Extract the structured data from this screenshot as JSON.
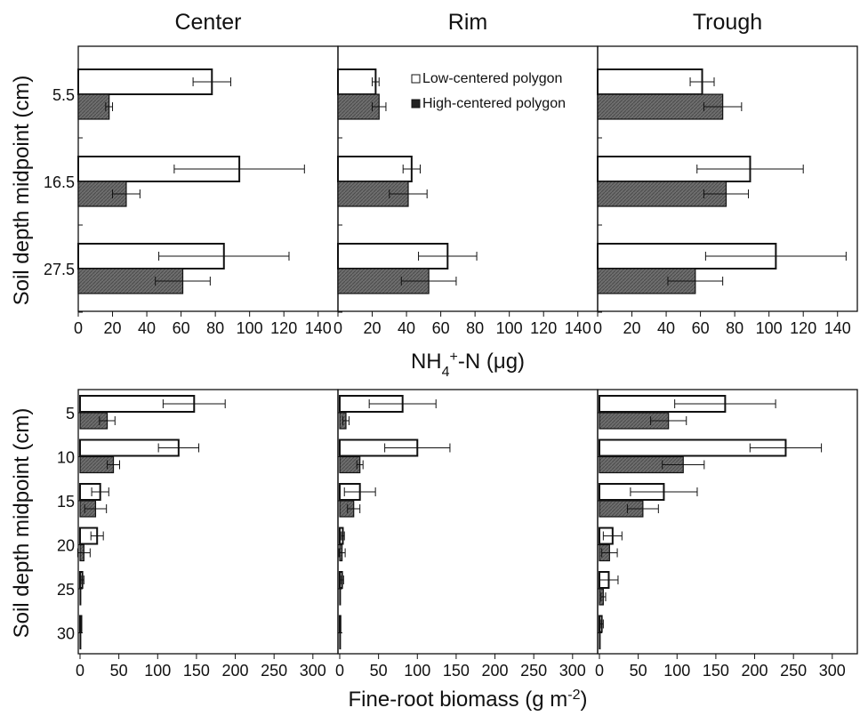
{
  "chart_data": [
    {
      "type": "bar",
      "orientation": "horizontal",
      "panel_title": "Center",
      "row": "top",
      "categories": [
        "5.5",
        "16.5",
        "27.5"
      ],
      "series": [
        {
          "values": [
            78,
            94,
            85
          ],
          "errors": [
            11,
            38,
            38
          ]
        },
        {
          "values": [
            18,
            28,
            61
          ],
          "errors": [
            2,
            8,
            16
          ]
        }
      ],
      "xlim": [
        0,
        150
      ],
      "xticks": [
        "0",
        "20",
        "40",
        "60",
        "80",
        "100",
        "120",
        "140"
      ]
    },
    {
      "type": "bar",
      "orientation": "horizontal",
      "panel_title": "Rim",
      "row": "top",
      "categories": [
        "5.5",
        "16.5",
        "27.5"
      ],
      "series": [
        {
          "values": [
            22,
            43,
            64
          ],
          "errors": [
            2,
            5,
            17
          ]
        },
        {
          "values": [
            24,
            41,
            53
          ],
          "errors": [
            4,
            11,
            16
          ]
        }
      ],
      "xlim": [
        0,
        150
      ],
      "xticks": [
        "0",
        "20",
        "40",
        "60",
        "80",
        "100",
        "120",
        "140"
      ]
    },
    {
      "type": "bar",
      "orientation": "horizontal",
      "panel_title": "Trough",
      "row": "top",
      "categories": [
        "5.5",
        "16.5",
        "27.5"
      ],
      "series": [
        {
          "values": [
            61,
            89,
            104
          ],
          "errors": [
            7,
            31,
            41
          ]
        },
        {
          "values": [
            73,
            75,
            57
          ],
          "errors": [
            11,
            13,
            16
          ]
        }
      ],
      "xlim": [
        0,
        150
      ],
      "xticks": [
        "0",
        "20",
        "40",
        "60",
        "80",
        "100",
        "120",
        "140"
      ]
    },
    {
      "type": "bar",
      "orientation": "horizontal",
      "row": "bottom",
      "categories": [
        "5",
        "10",
        "15",
        "20",
        "25",
        "30"
      ],
      "series": [
        {
          "values": [
            147,
            127,
            26,
            22,
            3,
            1
          ],
          "errors": [
            40,
            26,
            11,
            8,
            2,
            0
          ]
        },
        {
          "values": [
            35,
            43,
            20,
            5,
            0,
            0
          ],
          "errors": [
            10,
            8,
            14,
            8,
            0,
            0
          ]
        }
      ],
      "xlim": [
        0,
        330
      ],
      "xticks": [
        "0",
        "50",
        "100",
        "150",
        "200",
        "250",
        "300"
      ]
    },
    {
      "type": "bar",
      "orientation": "horizontal",
      "row": "bottom",
      "categories": [
        "5",
        "10",
        "15",
        "20",
        "25",
        "30"
      ],
      "series": [
        {
          "values": [
            81,
            100,
            26,
            4,
            3,
            0
          ],
          "errors": [
            43,
            42,
            20,
            2,
            2,
            0
          ]
        },
        {
          "values": [
            8,
            26,
            18,
            3,
            0,
            0
          ],
          "errors": [
            4,
            4,
            8,
            4,
            0,
            0
          ]
        }
      ],
      "xlim": [
        0,
        330
      ],
      "xticks": [
        "0",
        "50",
        "100",
        "150",
        "200",
        "250",
        "300"
      ]
    },
    {
      "type": "bar",
      "orientation": "horizontal",
      "row": "bottom",
      "categories": [
        "5",
        "10",
        "15",
        "20",
        "25",
        "30"
      ],
      "series": [
        {
          "values": [
            162,
            240,
            83,
            17,
            12,
            3
          ],
          "errors": [
            65,
            46,
            43,
            12,
            12,
            2
          ]
        },
        {
          "values": [
            89,
            108,
            56,
            13,
            5,
            0
          ],
          "errors": [
            23,
            27,
            20,
            10,
            3,
            0
          ]
        }
      ],
      "xlim": [
        0,
        330
      ],
      "xticks": [
        "0",
        "50",
        "100",
        "150",
        "200",
        "250",
        "300"
      ]
    }
  ],
  "column_titles": [
    "Center",
    "Rim",
    "Trough"
  ],
  "legend": {
    "items": [
      {
        "label": "Low-centered polygon",
        "color": "#ffffff"
      },
      {
        "label": "High-centered polygon",
        "color": "#6e6e6e"
      }
    ],
    "placement": "top-right of the Rim panel (top row)"
  },
  "top_axes": {
    "ylabel": "Soil depth midpoint (cm)",
    "xlabel_base": "NH",
    "xlabel_sub": "4",
    "xlabel_sup": "+",
    "xlabel_rest": "-N (μg)"
  },
  "bottom_axes": {
    "ylabel": "Soil depth midpoint (cm)",
    "xlabel_base": "Fine-root biomass (g m",
    "xlabel_sup": "-2",
    "xlabel_close": ")"
  },
  "colors": {
    "low_fill": "#ffffff",
    "high_fill": "#6e6e6e",
    "stroke": "#111111"
  }
}
